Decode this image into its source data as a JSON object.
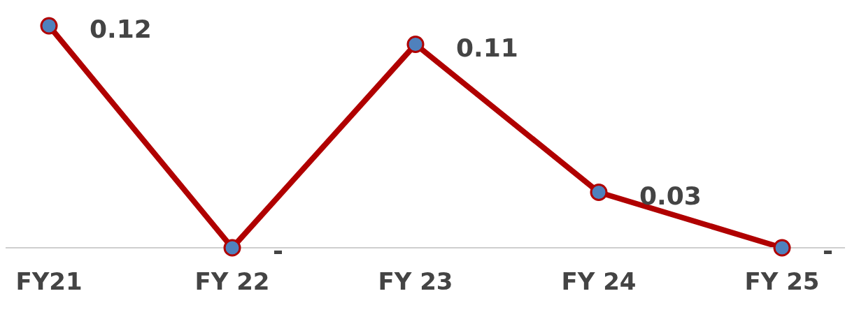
{
  "chart_data": {
    "type": "line",
    "categories": [
      "FY21",
      "FY 22",
      "FY 23",
      "FY 24",
      "FY 25"
    ],
    "series": [
      {
        "color": "#b00000",
        "values": [
          0.12,
          0,
          0.11,
          0.03,
          0
        ],
        "value_labels": [
          "0.12",
          "-",
          "0.11",
          "0.03",
          "-"
        ]
      }
    ],
    "marker": "circle"
  }
}
